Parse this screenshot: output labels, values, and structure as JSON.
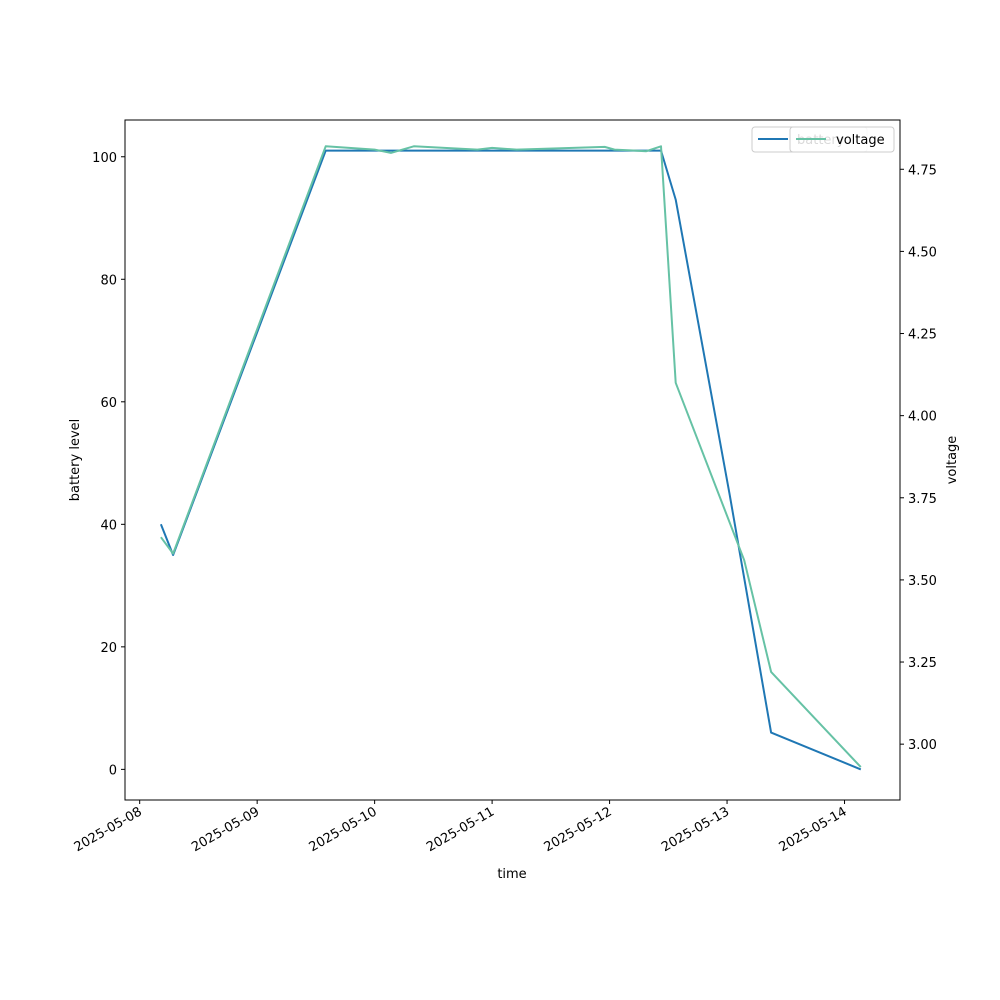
{
  "chart_data": {
    "type": "line",
    "xlabel": "time",
    "ylabel_left": "battery level",
    "ylabel_right": "voltage",
    "x_tick_labels": [
      "2025-05-08",
      "2025-05-09",
      "2025-05-10",
      "2025-05-11",
      "2025-05-12",
      "2025-05-13",
      "2025-05-14"
    ],
    "x_ticks": [
      "2025-05-08T00:00",
      "2025-05-09T00:00",
      "2025-05-10T00:00",
      "2025-05-11T00:00",
      "2025-05-12T00:00",
      "2025-05-13T00:00",
      "2025-05-14T00:00"
    ],
    "xlim": [
      "2025-05-07T21:00",
      "2025-05-14T11:20"
    ],
    "ylim_left": [
      -5,
      106
    ],
    "yticks_left": [
      0,
      20,
      40,
      60,
      80,
      100
    ],
    "ylim_right": [
      2.83,
      4.9
    ],
    "yticks_right": [
      3.0,
      3.25,
      3.5,
      3.75,
      4.0,
      4.25,
      4.5,
      4.75
    ],
    "yticks_right_labels": [
      "3.00",
      "3.25",
      "3.50",
      "3.75",
      "4.00",
      "4.25",
      "4.50",
      "4.75"
    ],
    "legend_position": "top-right",
    "series": [
      {
        "name": "battery",
        "axis": "left",
        "color": "#1f77b4",
        "points": [
          [
            "2025-05-08T04:20",
            40
          ],
          [
            "2025-05-08T06:50",
            35
          ],
          [
            "2025-05-09T14:00",
            101
          ],
          [
            "2025-05-12T10:30",
            101
          ],
          [
            "2025-05-12T13:30",
            93
          ],
          [
            "2025-05-13T00:30",
            45
          ],
          [
            "2025-05-13T09:00",
            6
          ],
          [
            "2025-05-14T03:20",
            0
          ]
        ]
      },
      {
        "name": "voltage",
        "axis": "right",
        "color": "#66c2a5",
        "points": [
          [
            "2025-05-08T04:20",
            3.63
          ],
          [
            "2025-05-08T06:50",
            3.58
          ],
          [
            "2025-05-09T14:00",
            4.82
          ],
          [
            "2025-05-10T00:00",
            4.81
          ],
          [
            "2025-05-10T03:20",
            4.8
          ],
          [
            "2025-05-10T08:00",
            4.82
          ],
          [
            "2025-05-10T21:00",
            4.81
          ],
          [
            "2025-05-11T00:00",
            4.815
          ],
          [
            "2025-05-11T05:00",
            4.81
          ],
          [
            "2025-05-11T10:00",
            4.812
          ],
          [
            "2025-05-11T23:00",
            4.818
          ],
          [
            "2025-05-12T01:00",
            4.81
          ],
          [
            "2025-05-12T07:30",
            4.805
          ],
          [
            "2025-05-12T10:30",
            4.82
          ],
          [
            "2025-05-12T13:30",
            4.1
          ],
          [
            "2025-05-13T03:30",
            3.56
          ],
          [
            "2025-05-13T09:00",
            3.22
          ],
          [
            "2025-05-14T03:20",
            2.93
          ]
        ]
      }
    ]
  }
}
